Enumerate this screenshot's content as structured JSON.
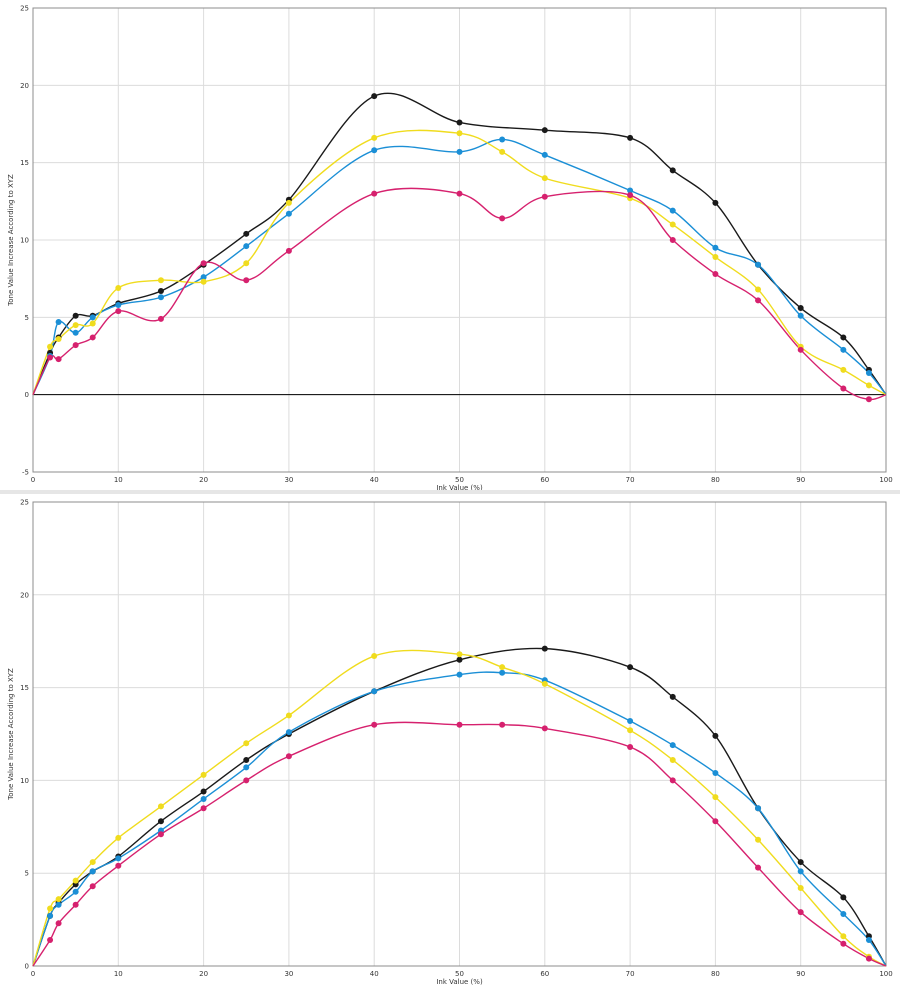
{
  "colors": {
    "black": "#1a1a1a",
    "cyan": "#1b8fd6",
    "yellow": "#f0dc1e",
    "magenta": "#d6216e",
    "grid": "#dcdcdc",
    "frame": "#8c8c8c"
  },
  "chart_data": [
    {
      "type": "line",
      "xlabel": "Ink Value (%)",
      "ylabel": "Tone Value Increase According to XYZ",
      "xlim": [
        0,
        100
      ],
      "ylim": [
        -5,
        25
      ],
      "xticks": [
        0,
        10,
        20,
        30,
        40,
        50,
        60,
        70,
        80,
        90,
        100
      ],
      "yticks": [
        -5,
        0,
        5,
        10,
        15,
        20,
        25
      ],
      "grid": true,
      "zero_line": true,
      "series": [
        {
          "color": "#1a1a1a",
          "x": [
            0,
            2,
            3,
            5,
            7,
            10,
            15,
            20,
            25,
            30,
            40,
            50,
            60,
            70,
            75,
            80,
            85,
            90,
            95,
            98,
            100
          ],
          "y": [
            0,
            2.7,
            3.7,
            5.1,
            5.1,
            5.9,
            6.7,
            8.4,
            10.4,
            12.6,
            19.3,
            17.6,
            17.1,
            16.6,
            14.5,
            12.4,
            8.4,
            5.6,
            3.7,
            1.6,
            0
          ]
        },
        {
          "color": "#1b8fd6",
          "x": [
            0,
            2,
            3,
            5,
            7,
            10,
            15,
            20,
            25,
            30,
            40,
            50,
            55,
            60,
            70,
            75,
            80,
            85,
            90,
            95,
            98,
            100
          ],
          "y": [
            0,
            2.5,
            4.7,
            4.0,
            5.0,
            5.8,
            6.3,
            7.6,
            9.6,
            11.7,
            15.8,
            15.7,
            16.5,
            15.5,
            13.2,
            11.9,
            9.5,
            8.4,
            5.1,
            2.9,
            1.4,
            0
          ]
        },
        {
          "color": "#f0dc1e",
          "x": [
            0,
            2,
            3,
            5,
            7,
            10,
            15,
            20,
            25,
            30,
            40,
            50,
            55,
            60,
            70,
            75,
            80,
            85,
            90,
            95,
            98,
            100
          ],
          "y": [
            0,
            3.1,
            3.6,
            4.5,
            4.6,
            6.9,
            7.4,
            7.3,
            8.5,
            12.4,
            16.6,
            16.9,
            15.7,
            14.0,
            12.7,
            11.0,
            8.9,
            6.8,
            3.1,
            1.6,
            0.6,
            0
          ]
        },
        {
          "color": "#d6216e",
          "x": [
            0,
            2,
            3,
            5,
            7,
            10,
            15,
            20,
            25,
            30,
            40,
            50,
            55,
            60,
            70,
            75,
            80,
            85,
            90,
            95,
            98,
            100
          ],
          "y": [
            0,
            2.4,
            2.3,
            3.2,
            3.7,
            5.4,
            4.9,
            8.5,
            7.4,
            9.3,
            13.0,
            13.0,
            11.4,
            12.8,
            12.9,
            10.0,
            7.8,
            6.1,
            2.9,
            0.4,
            -0.3,
            0
          ]
        }
      ]
    },
    {
      "type": "line",
      "xlabel": "Ink Value (%)",
      "ylabel": "Tone Value Increase According to XYZ",
      "xlim": [
        0,
        100
      ],
      "ylim": [
        0,
        25
      ],
      "xticks": [
        0,
        10,
        20,
        30,
        40,
        50,
        60,
        70,
        80,
        90,
        100
      ],
      "yticks": [
        0,
        5,
        10,
        15,
        20,
        25
      ],
      "grid": true,
      "zero_line": false,
      "series": [
        {
          "color": "#1a1a1a",
          "x": [
            0,
            2,
            3,
            5,
            7,
            10,
            15,
            20,
            25,
            30,
            40,
            50,
            60,
            70,
            75,
            80,
            85,
            90,
            95,
            98,
            100
          ],
          "y": [
            0,
            2.7,
            3.4,
            4.4,
            5.1,
            5.9,
            7.8,
            9.4,
            11.1,
            12.5,
            14.8,
            16.5,
            17.1,
            16.1,
            14.5,
            12.4,
            8.5,
            5.6,
            3.7,
            1.6,
            0
          ]
        },
        {
          "color": "#1b8fd6",
          "x": [
            0,
            2,
            3,
            5,
            7,
            10,
            15,
            20,
            25,
            30,
            40,
            50,
            55,
            60,
            70,
            75,
            80,
            85,
            90,
            95,
            98,
            100
          ],
          "y": [
            0,
            2.7,
            3.3,
            4.0,
            5.1,
            5.8,
            7.3,
            9.0,
            10.7,
            12.6,
            14.8,
            15.7,
            15.8,
            15.4,
            13.2,
            11.9,
            10.4,
            8.5,
            5.1,
            2.8,
            1.4,
            0
          ]
        },
        {
          "color": "#f0dc1e",
          "x": [
            0,
            2,
            3,
            5,
            7,
            10,
            15,
            20,
            25,
            30,
            40,
            50,
            55,
            60,
            70,
            75,
            80,
            85,
            90,
            95,
            98,
            100
          ],
          "y": [
            0,
            3.1,
            3.6,
            4.6,
            5.6,
            6.9,
            8.6,
            10.3,
            12.0,
            13.5,
            16.7,
            16.8,
            16.1,
            15.2,
            12.7,
            11.1,
            9.1,
            6.8,
            4.2,
            1.6,
            0.5,
            0
          ]
        },
        {
          "color": "#d6216e",
          "x": [
            0,
            2,
            3,
            5,
            7,
            10,
            15,
            20,
            25,
            30,
            40,
            50,
            55,
            60,
            70,
            75,
            80,
            85,
            90,
            95,
            98,
            100
          ],
          "y": [
            0,
            1.4,
            2.3,
            3.3,
            4.3,
            5.4,
            7.1,
            8.5,
            10.0,
            11.3,
            13.0,
            13.0,
            13.0,
            12.8,
            11.8,
            10.0,
            7.8,
            5.3,
            2.9,
            1.2,
            0.4,
            0
          ]
        }
      ]
    }
  ]
}
